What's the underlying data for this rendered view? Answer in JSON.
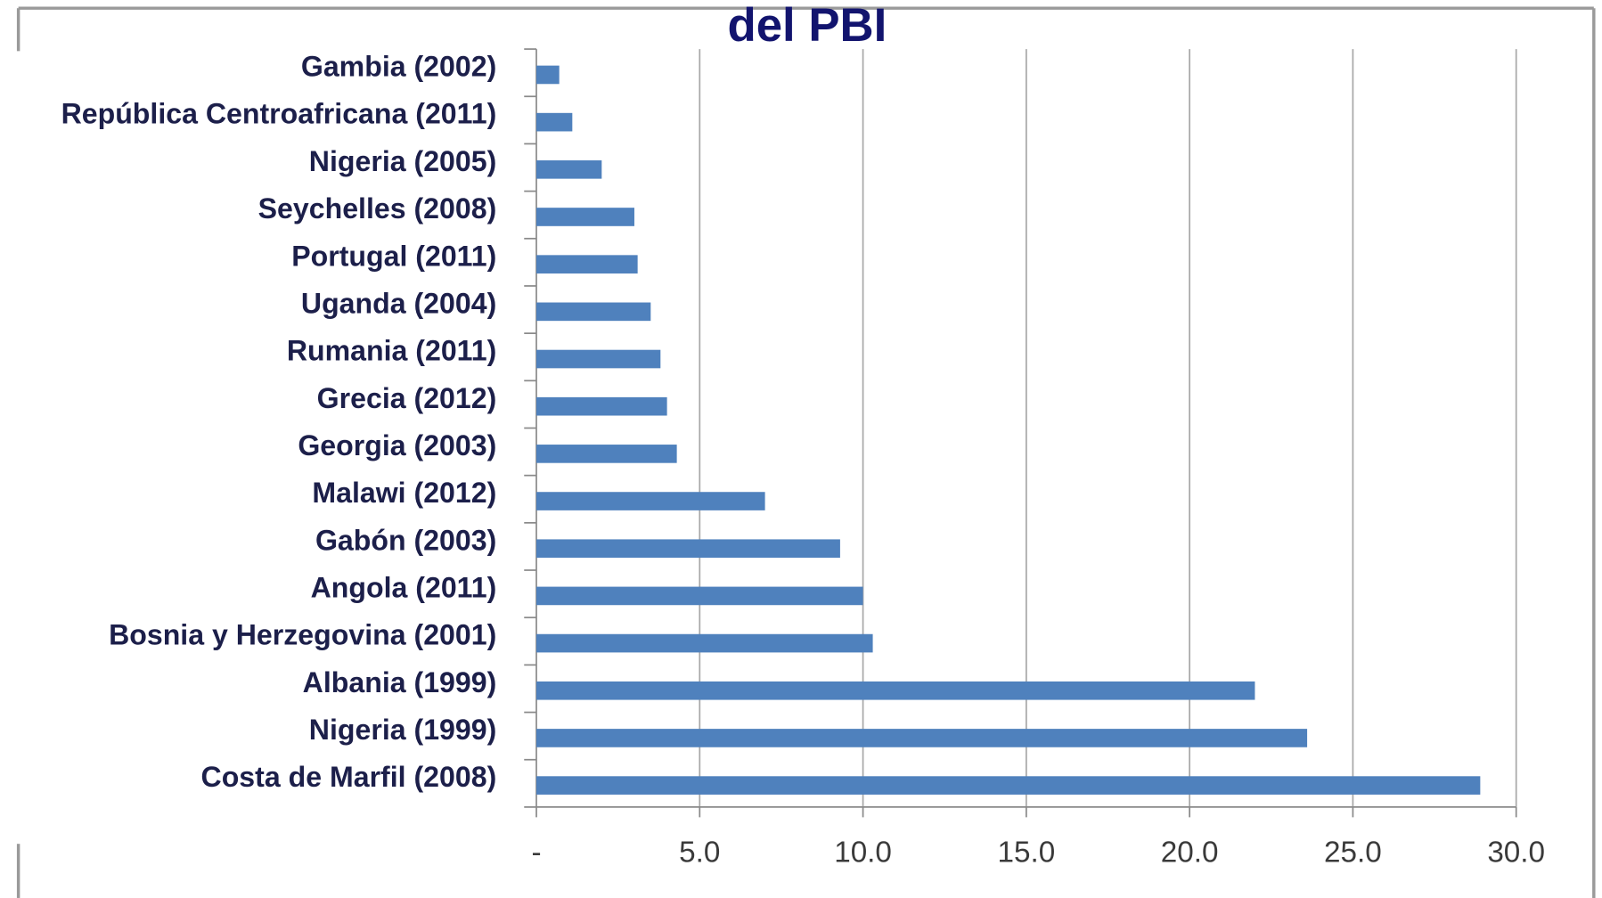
{
  "chart_data": {
    "type": "bar",
    "orientation": "horizontal",
    "title": "del PBI",
    "categories": [
      "Gambia (2002)",
      "República Centroafricana (2011)",
      "Nigeria (2005)",
      "Seychelles (2008)",
      "Portugal (2011)",
      "Uganda (2004)",
      "Rumania (2011)",
      "Grecia (2012)",
      "Georgia (2003)",
      "Malawi (2012)",
      "Gabón (2003)",
      "Angola (2011)",
      "Bosnia y Herzegovina (2001)",
      "Albania (1999)",
      "Nigeria (1999)",
      "Costa de Marfil (2008)"
    ],
    "values": [
      0.7,
      1.1,
      2.0,
      3.0,
      3.1,
      3.5,
      3.8,
      4.0,
      4.3,
      7.0,
      9.3,
      10.0,
      10.3,
      22.0,
      23.6,
      28.9
    ],
    "color": "#4f81bd",
    "xlim": [
      0,
      30
    ],
    "xticks": [
      {
        "value": 0,
        "label": "-"
      },
      {
        "value": 5,
        "label": "5.0"
      },
      {
        "value": 10,
        "label": "10.0"
      },
      {
        "value": 15,
        "label": "15.0"
      },
      {
        "value": 20,
        "label": "20.0"
      },
      {
        "value": 25,
        "label": "25.0"
      },
      {
        "value": 30,
        "label": "30.0"
      }
    ],
    "grid": true
  }
}
